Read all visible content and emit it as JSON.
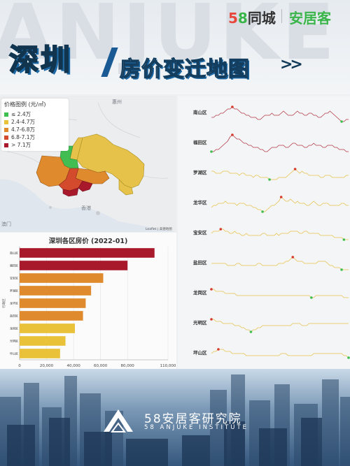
{
  "watermark": "ANJUKE",
  "brand": {
    "logo_58_a": "5",
    "logo_58_b": "8",
    "logo_tc": "同城",
    "logo_ajk": "安居客"
  },
  "title": {
    "city": "深圳",
    "subtitle": "房价变迁地图",
    "arrows": ">>"
  },
  "map": {
    "legend_title": "价格图例 (元/㎡)",
    "legend": [
      {
        "label": "≤ 2.4万",
        "color": "#3fbf4f"
      },
      {
        "label": "2.4-4.7万",
        "color": "#e9c23a"
      },
      {
        "label": "4.7-6.8万",
        "color": "#e08a2e"
      },
      {
        "label": "6.8-7.1万",
        "color": "#d44a2c"
      },
      {
        "label": "> 7.1万",
        "color": "#a8192b"
      }
    ],
    "place_huizhou": "惠州",
    "place_hongkong": "香港",
    "place_macau": "澳门",
    "attribution": "Leaflet | 高德地图"
  },
  "chart_data": [
    {
      "type": "bar",
      "title": "深圳各区房价 (2022-01)",
      "ylabel": "行政区",
      "categories": [
        "南山区",
        "福田区",
        "宝安区",
        "罗湖区",
        "龙华区",
        "盐田区",
        "龙岗区",
        "光明区",
        "坪山区"
      ],
      "values": [
        100000,
        80000,
        62000,
        53000,
        49000,
        47000,
        41000,
        34000,
        30000
      ],
      "colors": [
        "#a8192b",
        "#a8192b",
        "#e08a2e",
        "#e08a2e",
        "#e08a2e",
        "#e08a2e",
        "#e9c23a",
        "#e9c23a",
        "#e9c23a"
      ],
      "xlim": [
        0,
        110000
      ],
      "xticks": [
        0,
        20000,
        40000,
        60000,
        80000,
        110000
      ],
      "xtick_labels": [
        "0",
        "20,000",
        "40,000",
        "60,000",
        "80,000",
        "110,000"
      ],
      "grid": true
    },
    {
      "type": "line",
      "series": [
        {
          "name": "南山区",
          "color": "#b23a48",
          "values": [
            3,
            3,
            4,
            4,
            5,
            5,
            6,
            7,
            7,
            8,
            7,
            7,
            6,
            5,
            5,
            4,
            4,
            3,
            3,
            3,
            2,
            2,
            3,
            4,
            4,
            4,
            5,
            4,
            4,
            4,
            5,
            6,
            5,
            4,
            4,
            4,
            5,
            6,
            5,
            5,
            4,
            4,
            5,
            5,
            4,
            4,
            3,
            3,
            4,
            5,
            5,
            6,
            5,
            4,
            3,
            2,
            1,
            1,
            2,
            2
          ]
        },
        {
          "name": "福田区",
          "color": "#b23a48",
          "values": [
            1,
            1,
            2,
            2,
            3,
            4,
            5,
            6,
            8,
            9,
            8,
            7,
            7,
            6,
            5,
            5,
            4,
            4,
            3,
            3,
            3,
            2,
            2,
            1,
            1,
            2,
            3,
            3,
            3,
            4,
            4,
            4,
            3,
            3,
            4,
            5,
            5,
            4,
            4,
            4,
            3,
            3,
            4,
            4,
            5,
            4,
            4,
            4,
            3,
            3,
            4,
            4,
            4,
            3,
            3,
            2,
            2,
            2,
            1,
            1
          ]
        },
        {
          "name": "罗湖区",
          "color": "#e6c24b",
          "values": [
            6,
            6,
            5,
            5,
            5,
            6,
            6,
            6,
            5,
            5,
            5,
            5,
            4,
            5,
            5,
            4,
            4,
            4,
            3,
            4,
            4,
            3,
            3,
            3,
            3,
            2,
            2,
            2,
            2,
            3,
            3,
            3,
            3,
            4,
            5,
            6,
            7,
            6,
            5,
            6,
            5,
            5,
            4,
            4,
            4,
            4,
            4,
            3,
            3,
            4,
            4,
            4,
            3,
            3,
            3,
            3,
            3,
            3,
            4,
            4
          ]
        },
        {
          "name": "龙华区",
          "color": "#e6c24b",
          "values": [
            3,
            4,
            4,
            5,
            5,
            5,
            6,
            5,
            5,
            5,
            5,
            4,
            5,
            5,
            5,
            4,
            4,
            4,
            3,
            3,
            2,
            2,
            1,
            1,
            2,
            3,
            4,
            4,
            5,
            6,
            8,
            7,
            6,
            6,
            7,
            6,
            5,
            6,
            5,
            5,
            5,
            4,
            4,
            5,
            6,
            5,
            4,
            4,
            5,
            5,
            5,
            4,
            4,
            4,
            4,
            4,
            5,
            5,
            4,
            4
          ]
        },
        {
          "name": "宝安区",
          "color": "#e6c24b",
          "values": [
            5,
            6,
            6,
            6,
            7,
            7,
            6,
            6,
            5,
            5,
            6,
            5,
            5,
            4,
            4,
            5,
            4,
            4,
            4,
            4,
            4,
            4,
            5,
            5,
            4,
            4,
            4,
            4,
            5,
            4,
            5,
            5,
            5,
            5,
            6,
            6,
            6,
            6,
            5,
            5,
            6,
            6,
            5,
            5,
            5,
            5,
            5,
            4,
            4,
            4,
            4,
            4,
            4,
            3,
            3,
            3,
            3,
            2,
            2,
            2
          ]
        },
        {
          "name": "盐田区",
          "color": "#e6c24b",
          "values": [
            5,
            5,
            5,
            5,
            5,
            5,
            5,
            4,
            4,
            4,
            4,
            5,
            5,
            4,
            4,
            4,
            4,
            4,
            4,
            4,
            5,
            5,
            4,
            4,
            4,
            4,
            4,
            4,
            4,
            5,
            5,
            5,
            6,
            6,
            7,
            8,
            7,
            6,
            6,
            6,
            5,
            5,
            5,
            5,
            5,
            5,
            6,
            6,
            6,
            6,
            5,
            4,
            4,
            3,
            3,
            3,
            2,
            2,
            2,
            2
          ]
        },
        {
          "name": "龙岗区",
          "color": "#e6c24b",
          "values": [
            7,
            7,
            6,
            6,
            6,
            6,
            5,
            5,
            5,
            5,
            5,
            4,
            4,
            4,
            4,
            4,
            4,
            4,
            4,
            4,
            4,
            4,
            4,
            4,
            4,
            4,
            4,
            4,
            4,
            4,
            4,
            4,
            4,
            4,
            4,
            4,
            4,
            4,
            4,
            4,
            4,
            4,
            4,
            3,
            3,
            4,
            4,
            4,
            4,
            4,
            4,
            4,
            4,
            4,
            4,
            4,
            4,
            3,
            3,
            3
          ]
        },
        {
          "name": "光明区",
          "color": "#e6c24b",
          "values": [
            7,
            7,
            6,
            6,
            6,
            5,
            5,
            5,
            5,
            5,
            4,
            4,
            4,
            3,
            3,
            2,
            2,
            1,
            2,
            2,
            3,
            3,
            4,
            4,
            4,
            4,
            4,
            4,
            4,
            4,
            4,
            4,
            4,
            4,
            4,
            5,
            5,
            5,
            5,
            4,
            4,
            4,
            5,
            5,
            5,
            5,
            5,
            5,
            5,
            5,
            5,
            5,
            5,
            5,
            5,
            5,
            5,
            5,
            5,
            5
          ]
        },
        {
          "name": "坪山区",
          "color": "#e6c24b",
          "values": [
            5,
            6,
            6,
            7,
            7,
            7,
            6,
            6,
            6,
            5,
            5,
            5,
            5,
            5,
            5,
            4,
            4,
            4,
            4,
            4,
            4,
            4,
            4,
            4,
            4,
            4,
            4,
            4,
            4,
            4,
            5,
            5,
            5,
            4,
            4,
            4,
            4,
            4,
            4,
            4,
            4,
            4,
            4,
            4,
            5,
            5,
            5,
            5,
            5,
            5,
            5,
            5,
            5,
            5,
            5,
            5,
            5,
            4,
            4,
            3
          ]
        }
      ]
    }
  ],
  "institute": {
    "name_cn": "58安居客研究院",
    "name_en": "58 ANJUKE INSTITUTE"
  }
}
